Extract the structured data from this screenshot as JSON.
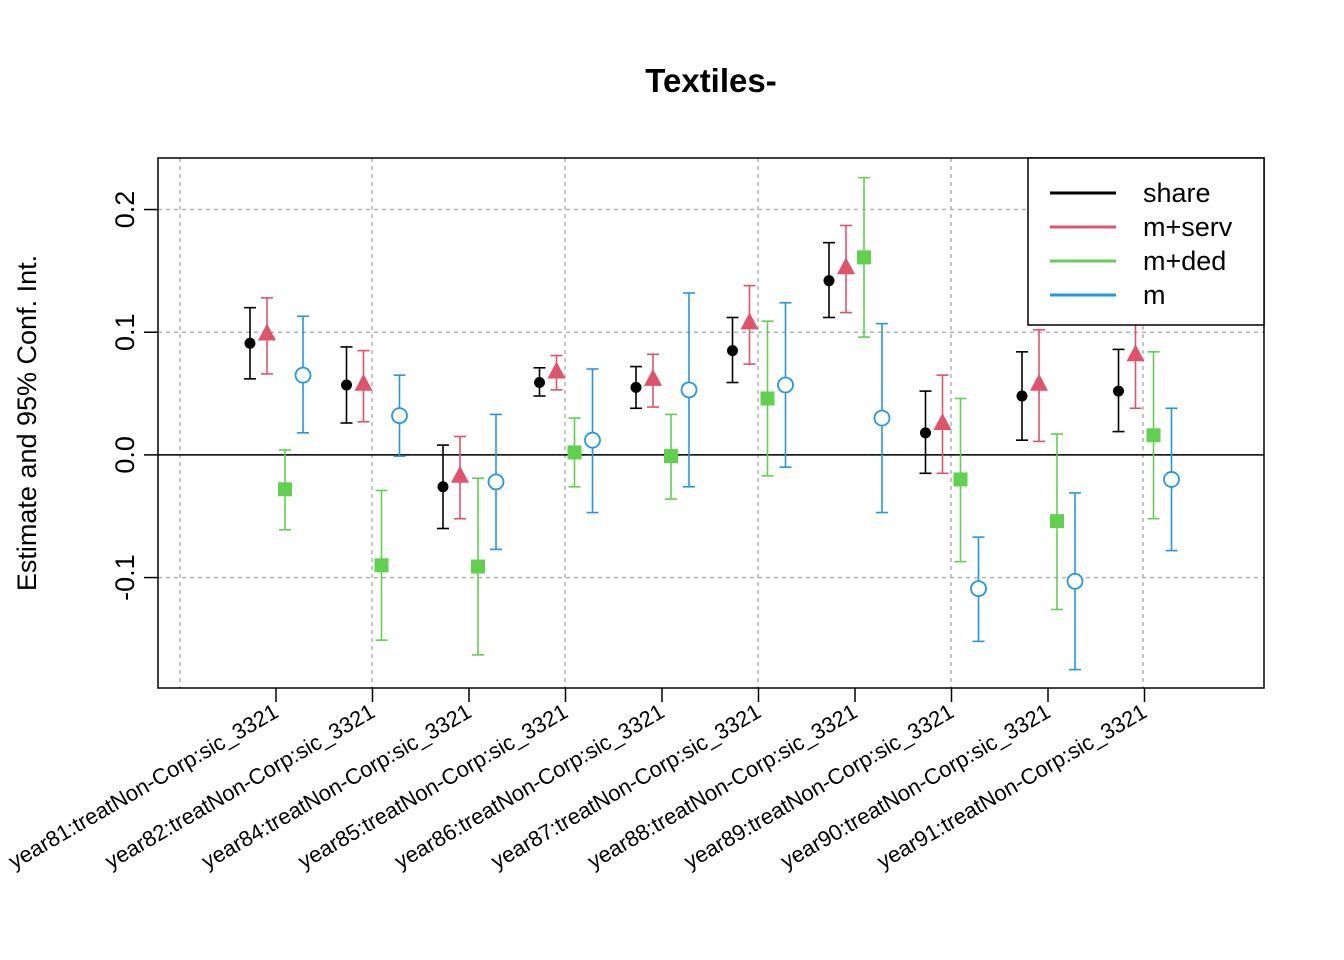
{
  "chart_data": {
    "type": "scatter",
    "title": "Textiles-",
    "ylabel": "Estimate and 95% Conf. Int.",
    "xlabel": "",
    "ylim": [
      -0.19,
      0.242
    ],
    "yticks": [
      -0.1,
      0.0,
      0.1,
      0.2
    ],
    "ytick_labels": [
      "-0.1",
      "0.0",
      "0.1",
      "0.2"
    ],
    "grid": true,
    "zero_line": 0.0,
    "legend_position": "top-right",
    "categories": [
      "year81:treatNon-Corp:sic_3321",
      "year82:treatNon-Corp:sic_3321",
      "year84:treatNon-Corp:sic_3321",
      "year85:treatNon-Corp:sic_3321",
      "year86:treatNon-Corp:sic_3321",
      "year87:treatNon-Corp:sic_3321",
      "year88:treatNon-Corp:sic_3321",
      "year89:treatNon-Corp:sic_3321",
      "year90:treatNon-Corp:sic_3321",
      "year91:treatNon-Corp:sic_3321"
    ],
    "series": [
      {
        "name": "share",
        "color": "#000000",
        "marker": "filled-circle",
        "values": [
          0.091,
          0.057,
          -0.026,
          0.059,
          0.055,
          0.085,
          0.142,
          0.018,
          0.048,
          0.052
        ],
        "lower": [
          0.062,
          0.026,
          -0.06,
          0.048,
          0.038,
          0.059,
          0.112,
          -0.015,
          0.012,
          0.019
        ],
        "upper": [
          0.12,
          0.088,
          0.008,
          0.071,
          0.072,
          0.112,
          0.173,
          0.052,
          0.084,
          0.086
        ]
      },
      {
        "name": "m+serv",
        "color": "#DF536B",
        "marker": "filled-triangle",
        "values": [
          0.099,
          0.058,
          -0.017,
          0.068,
          0.062,
          0.108,
          0.153,
          0.026,
          0.058,
          0.082
        ],
        "lower": [
          0.066,
          0.027,
          -0.052,
          0.053,
          0.039,
          0.074,
          0.116,
          -0.015,
          0.011,
          0.038
        ],
        "upper": [
          0.128,
          0.085,
          0.015,
          0.081,
          0.082,
          0.138,
          0.187,
          0.065,
          0.102,
          0.126
        ]
      },
      {
        "name": "m+ded",
        "color": "#61D04F",
        "marker": "filled-square",
        "values": [
          -0.028,
          -0.09,
          -0.091,
          0.002,
          -0.001,
          0.046,
          0.161,
          -0.02,
          -0.054,
          0.016
        ],
        "lower": [
          -0.061,
          -0.151,
          -0.163,
          -0.026,
          -0.036,
          -0.017,
          0.096,
          -0.087,
          -0.126,
          -0.052
        ],
        "upper": [
          0.004,
          -0.029,
          -0.019,
          0.03,
          0.033,
          0.109,
          0.226,
          0.046,
          0.017,
          0.084
        ]
      },
      {
        "name": "m",
        "color": "#2297E6",
        "marker": "open-circle",
        "values": [
          0.065,
          0.032,
          -0.022,
          0.012,
          0.053,
          0.057,
          0.03,
          -0.109,
          -0.103,
          -0.02
        ],
        "lower": [
          0.018,
          -0.001,
          -0.077,
          -0.047,
          -0.026,
          -0.01,
          -0.047,
          -0.152,
          -0.175,
          -0.078
        ],
        "upper": [
          0.113,
          0.065,
          0.033,
          0.07,
          0.132,
          0.124,
          0.107,
          -0.067,
          -0.031,
          0.038
        ]
      }
    ]
  }
}
